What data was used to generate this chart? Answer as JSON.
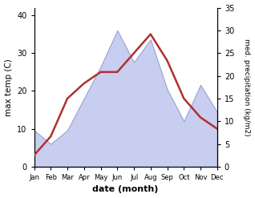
{
  "months": [
    "Jan",
    "Feb",
    "Mar",
    "Apr",
    "May",
    "Jun",
    "Jul",
    "Aug",
    "Sep",
    "Oct",
    "Nov",
    "Dec"
  ],
  "month_x": [
    1,
    2,
    3,
    4,
    5,
    6,
    7,
    8,
    9,
    10,
    11,
    12
  ],
  "temp": [
    3,
    8,
    18,
    22,
    25,
    25,
    30,
    35,
    28,
    18,
    13,
    10
  ],
  "precip": [
    8,
    5,
    8,
    15,
    22,
    30,
    23,
    28,
    17,
    10,
    18,
    12
  ],
  "temp_color": "#b03030",
  "precip_color_fill": "#c8cef0",
  "precip_color_edge": "#9aa0d0",
  "temp_ylim": [
    0,
    42
  ],
  "precip_ylim": [
    0,
    35
  ],
  "temp_yticks": [
    0,
    10,
    20,
    30,
    40
  ],
  "precip_yticks": [
    0,
    5,
    10,
    15,
    20,
    25,
    30,
    35
  ],
  "xlabel": "date (month)",
  "ylabel_left": "max temp (C)",
  "ylabel_right": "med. precipitation (kg/m2)",
  "bg_color": "#ffffff"
}
